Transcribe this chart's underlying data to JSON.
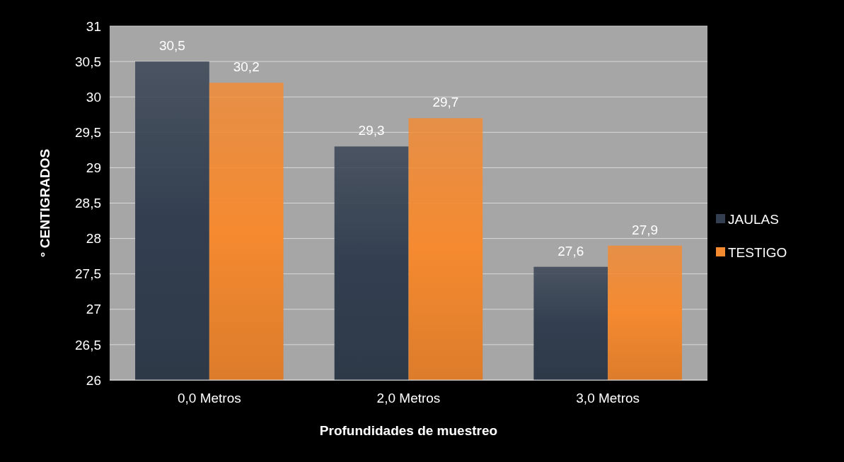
{
  "chart_data": {
    "type": "bar",
    "xlabel": "Profundidades de muestreo",
    "ylabel": "° CENTIGRADOS",
    "categories": [
      "0,0 Metros",
      "2,0 Metros",
      "3,0 Metros"
    ],
    "series": [
      {
        "name": "JAULAS",
        "color": "#333f50",
        "values": [
          30.5,
          29.3,
          27.6
        ],
        "value_labels": [
          "30,5",
          "29,3",
          "27,6"
        ]
      },
      {
        "name": "TESTIGO",
        "color": "#f58a30",
        "values": [
          30.2,
          29.7,
          27.9
        ],
        "value_labels": [
          "30,2",
          "29,7",
          "27,9"
        ]
      }
    ],
    "ylim": [
      26,
      31
    ],
    "yticks": [
      26,
      {
        "value": 26.5,
        "label": "26,5"
      },
      27,
      {
        "value": 27.5,
        "label": "27,5"
      },
      28,
      {
        "value": 28.5,
        "label": "28,5"
      },
      29,
      {
        "value": 29.5,
        "label": "29,5"
      },
      30,
      {
        "value": 30.5,
        "label": "30,5"
      },
      31
    ],
    "grid": "y",
    "legend": "right"
  }
}
